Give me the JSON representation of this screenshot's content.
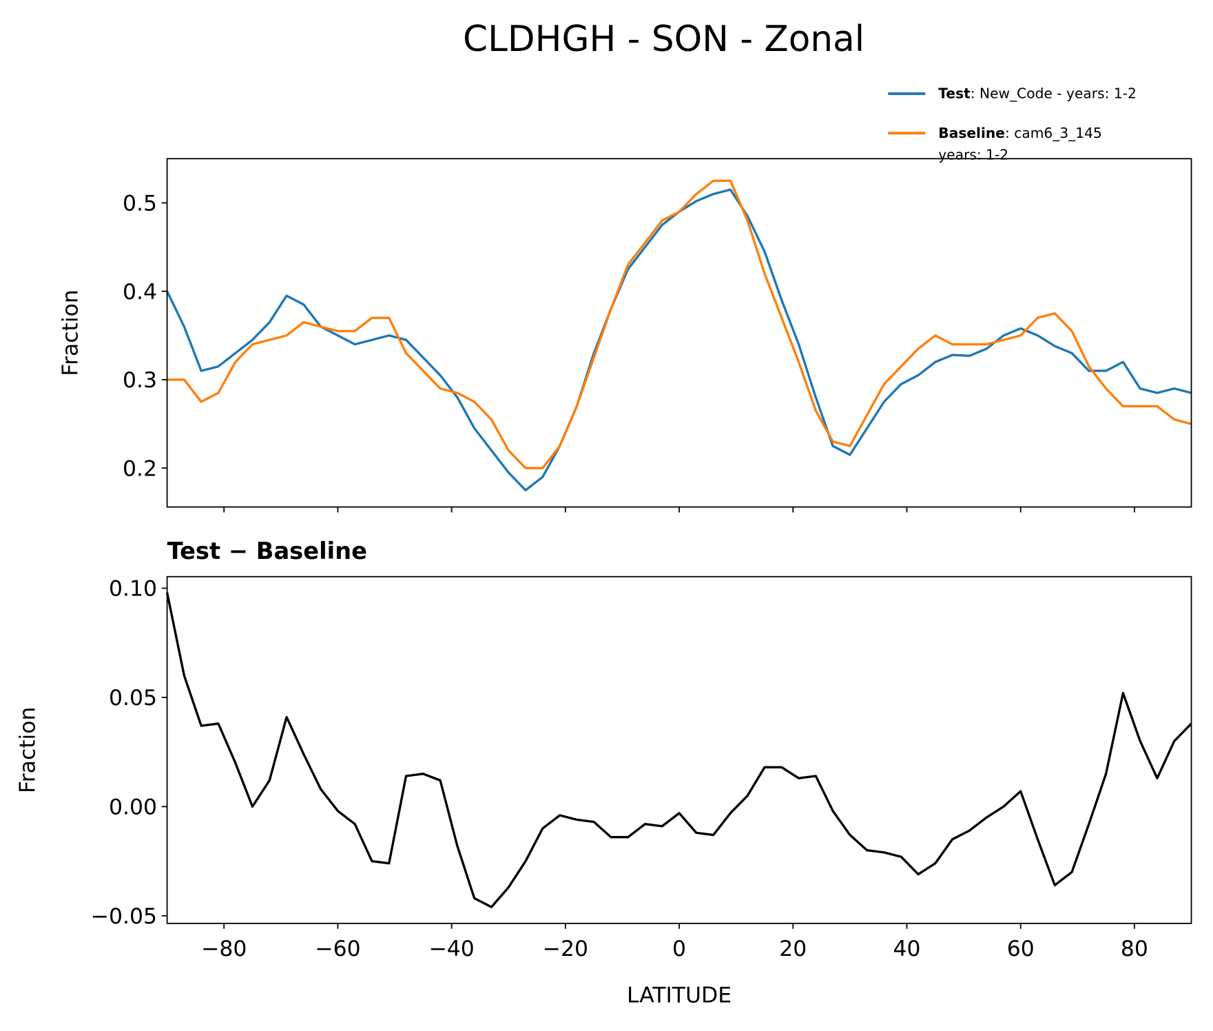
{
  "chart_data": [
    {
      "type": "line",
      "title": "CLDHGH - SON - Zonal",
      "ylabel": "Fraction",
      "x": [
        -90,
        -87,
        -84,
        -81,
        -78,
        -75,
        -72,
        -69,
        -66,
        -63,
        -60,
        -57,
        -54,
        -51,
        -48,
        -45,
        -42,
        -39,
        -36,
        -33,
        -30,
        -27,
        -24,
        -21,
        -18,
        -15,
        -12,
        -9,
        -6,
        -3,
        0,
        3,
        6,
        9,
        12,
        15,
        18,
        21,
        24,
        27,
        30,
        33,
        36,
        39,
        42,
        45,
        48,
        51,
        54,
        57,
        60,
        63,
        66,
        69,
        72,
        75,
        78,
        81,
        84,
        87,
        90
      ],
      "series": [
        {
          "name": "Test",
          "label": [
            ": New_Code - years: 1-2"
          ],
          "color": "#1f77b4",
          "values": [
            0.4,
            0.36,
            0.31,
            0.315,
            0.33,
            0.345,
            0.365,
            0.395,
            0.385,
            0.36,
            0.35,
            0.34,
            0.345,
            0.35,
            0.345,
            0.325,
            0.305,
            0.28,
            0.245,
            0.22,
            0.195,
            0.175,
            0.19,
            0.225,
            0.27,
            0.33,
            0.38,
            0.425,
            0.45,
            0.475,
            0.49,
            0.502,
            0.51,
            0.515,
            0.485,
            0.445,
            0.39,
            0.34,
            0.28,
            0.225,
            0.215,
            0.245,
            0.275,
            0.295,
            0.305,
            0.32,
            0.328,
            0.327,
            0.335,
            0.35,
            0.358,
            0.35,
            0.338,
            0.33,
            0.31,
            0.31,
            0.32,
            0.29,
            0.285,
            0.29,
            0.285
          ]
        },
        {
          "name": "Baseline",
          "label": [
            ": cam6_3_145",
            "years: 1-2"
          ],
          "color": "#ff7f0e",
          "values": [
            0.3,
            0.3,
            0.275,
            0.285,
            0.32,
            0.34,
            0.345,
            0.35,
            0.365,
            0.36,
            0.355,
            0.355,
            0.37,
            0.37,
            0.33,
            0.31,
            0.29,
            0.285,
            0.275,
            0.255,
            0.22,
            0.2,
            0.2,
            0.225,
            0.27,
            0.325,
            0.38,
            0.43,
            0.455,
            0.48,
            0.49,
            0.51,
            0.525,
            0.525,
            0.48,
            0.42,
            0.37,
            0.32,
            0.265,
            0.23,
            0.225,
            0.26,
            0.295,
            0.315,
            0.335,
            0.35,
            0.34,
            0.34,
            0.34,
            0.345,
            0.35,
            0.37,
            0.375,
            0.355,
            0.315,
            0.29,
            0.27,
            0.27,
            0.27,
            0.255,
            0.25
          ]
        }
      ],
      "xlim": [
        -90,
        90
      ],
      "xticks": [
        -80,
        -60,
        -40,
        -20,
        0,
        20,
        40,
        60,
        80
      ],
      "ylim": [
        0.156,
        0.55
      ],
      "yticks": [
        0.2,
        0.3,
        0.4,
        0.5
      ]
    },
    {
      "type": "line",
      "title": "Test − Baseline",
      "xlabel": "LATITUDE",
      "ylabel": "Fraction",
      "x": [
        -90,
        -87,
        -84,
        -81,
        -78,
        -75,
        -72,
        -69,
        -66,
        -63,
        -60,
        -57,
        -54,
        -51,
        -48,
        -45,
        -42,
        -39,
        -36,
        -33,
        -30,
        -27,
        -24,
        -21,
        -18,
        -15,
        -12,
        -9,
        -6,
        -3,
        0,
        3,
        6,
        9,
        12,
        15,
        18,
        21,
        24,
        27,
        30,
        33,
        36,
        39,
        42,
        45,
        48,
        51,
        54,
        57,
        60,
        63,
        66,
        69,
        72,
        75,
        78,
        81,
        84,
        87,
        90
      ],
      "series": [
        {
          "color": "#000000",
          "values": [
            0.098,
            0.06,
            0.037,
            0.038,
            0.02,
            0.0,
            0.012,
            0.041,
            0.024,
            0.008,
            -0.002,
            -0.008,
            -0.025,
            -0.026,
            0.014,
            0.015,
            0.012,
            -0.018,
            -0.042,
            -0.046,
            -0.037,
            -0.025,
            -0.01,
            -0.004,
            -0.006,
            -0.007,
            -0.014,
            -0.014,
            -0.008,
            -0.009,
            -0.003,
            -0.012,
            -0.013,
            -0.003,
            0.005,
            0.018,
            0.018,
            0.013,
            0.014,
            -0.002,
            -0.013,
            -0.02,
            -0.021,
            -0.023,
            -0.031,
            -0.026,
            -0.015,
            -0.011,
            -0.005,
            0.0,
            0.007,
            -0.015,
            -0.036,
            -0.03,
            -0.008,
            0.015,
            0.052,
            0.03,
            0.013,
            0.03,
            0.038
          ]
        }
      ],
      "xlim": [
        -90,
        90
      ],
      "xticks": [
        {
          "value": -80,
          "label": "−80"
        },
        {
          "value": -60,
          "label": "−60"
        },
        {
          "value": -40,
          "label": "−40"
        },
        {
          "value": -20,
          "label": "−20"
        },
        0,
        20,
        40,
        60,
        80
      ],
      "ylim": [
        -0.0535,
        0.1053
      ],
      "yticks": [
        {
          "value": -0.05,
          "label": "−0.05"
        },
        {
          "value": 0,
          "label": "0.00"
        },
        {
          "value": 0.05,
          "label": "0.05"
        },
        {
          "value": 0.1,
          "label": "0.10"
        }
      ]
    }
  ]
}
